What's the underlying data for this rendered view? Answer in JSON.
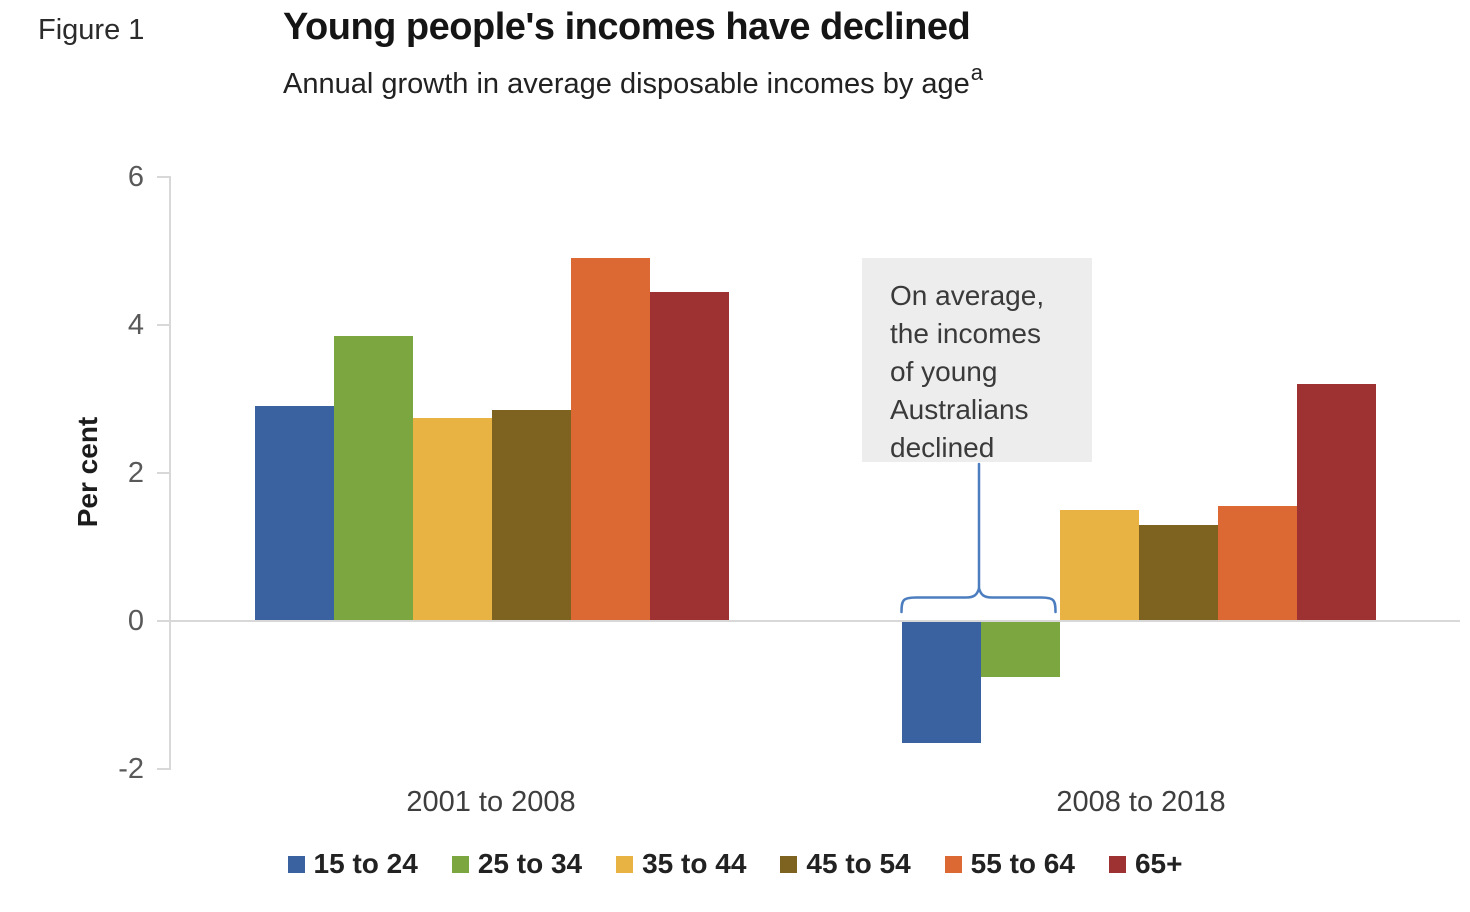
{
  "figure_label": "Figure 1",
  "chart_data": {
    "type": "bar",
    "title": "Young people's incomes have declined",
    "subtitle": "Annual growth in average disposable incomes by age",
    "subtitle_superscript": "a",
    "ylabel": "Per cent",
    "ylim": [
      -2,
      6
    ],
    "yticks": [
      6,
      4,
      2,
      0,
      -2
    ],
    "grid": false,
    "legend_position": "bottom",
    "categories": [
      "2001 to 2008",
      "2008 to 2018"
    ],
    "series": [
      {
        "name": "15 to 24",
        "color": "#3A62A1",
        "values": [
          2.9,
          -1.65
        ]
      },
      {
        "name": "25 to 34",
        "color": "#7BA640",
        "values": [
          3.85,
          -0.75
        ]
      },
      {
        "name": "35 to 44",
        "color": "#E8B343",
        "values": [
          2.75,
          1.5
        ]
      },
      {
        "name": "45 to 54",
        "color": "#7E6320",
        "values": [
          2.85,
          1.3
        ]
      },
      {
        "name": "55 to 64",
        "color": "#DC6833",
        "values": [
          4.9,
          1.55
        ]
      },
      {
        "name": "65+",
        "color": "#9E3233",
        "values": [
          4.45,
          3.2
        ]
      }
    ],
    "annotation": {
      "lines": [
        "On average,",
        "the incomes",
        "of young",
        "Australians",
        "declined"
      ],
      "text": "On average, the incomes of young Australians declined",
      "box_bg": "#EDEDED",
      "connector_color": "#4C7DBF"
    },
    "axis_color": "#D8D8D8",
    "tick_label_color": "#595959"
  }
}
